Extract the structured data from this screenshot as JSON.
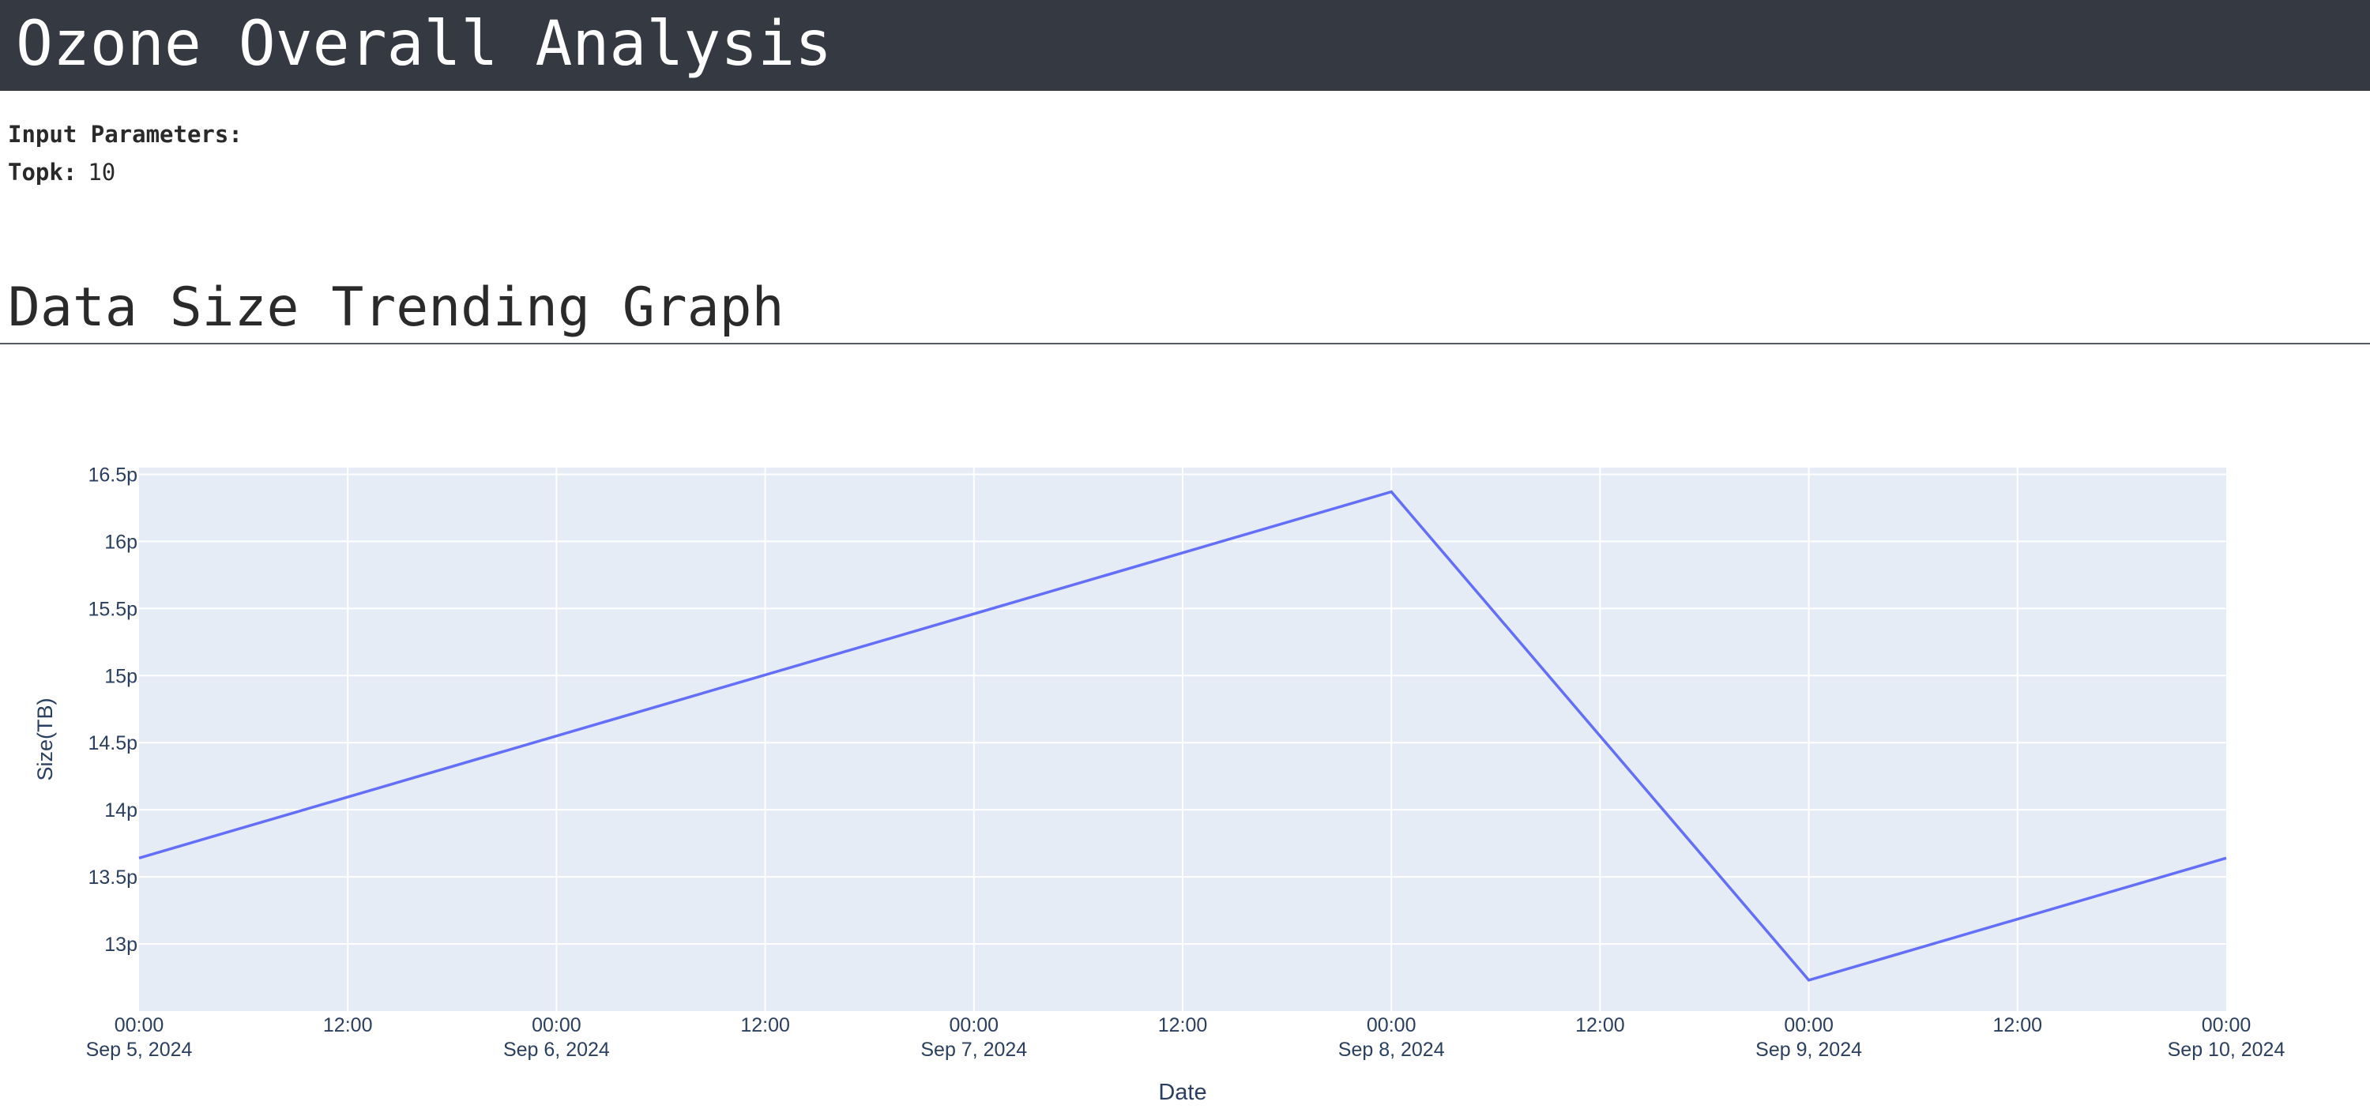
{
  "header": {
    "title": "Ozone Overall Analysis"
  },
  "params": {
    "heading": "Input Parameters:",
    "items": [
      {
        "label": "Topk:",
        "value": "10"
      }
    ]
  },
  "section": {
    "title": "Data Size Trending Graph"
  },
  "colors": {
    "header_bg": "#353a42",
    "plot_bg": "#e5ecf6",
    "line": "#636efa",
    "axis_text": "#2a3f5f"
  },
  "chart_data": {
    "type": "line",
    "xlabel": "Date",
    "ylabel": "Size(TB)",
    "x": [
      "2024-09-05 00:00",
      "2024-09-08 00:00",
      "2024-09-09 00:00",
      "2024-09-10 00:00"
    ],
    "series": [
      {
        "values": [
          1.364e-11,
          1.637e-11,
          1.273e-11,
          1.364e-11
        ]
      }
    ],
    "ylim": [
      1.25e-11,
      1.655e-11
    ],
    "xlim": [
      "2024-09-05 00:00",
      "2024-09-10 00:00"
    ],
    "yticks": [
      {
        "value": 1.3e-11,
        "label": "13p"
      },
      {
        "value": 1.35e-11,
        "label": "13.5p"
      },
      {
        "value": 1.4e-11,
        "label": "14p"
      },
      {
        "value": 1.45e-11,
        "label": "14.5p"
      },
      {
        "value": 1.5e-11,
        "label": "15p"
      },
      {
        "value": 1.55e-11,
        "label": "15.5p"
      },
      {
        "value": 1.6e-11,
        "label": "16p"
      },
      {
        "value": 1.65e-11,
        "label": "16.5p"
      }
    ],
    "xticks": [
      {
        "value": "2024-09-05 00:00",
        "time": "00:00",
        "date": "Sep 5, 2024"
      },
      {
        "value": "2024-09-05 12:00",
        "time": "12:00",
        "date": ""
      },
      {
        "value": "2024-09-06 00:00",
        "time": "00:00",
        "date": "Sep 6, 2024"
      },
      {
        "value": "2024-09-06 12:00",
        "time": "12:00",
        "date": ""
      },
      {
        "value": "2024-09-07 00:00",
        "time": "00:00",
        "date": "Sep 7, 2024"
      },
      {
        "value": "2024-09-07 12:00",
        "time": "12:00",
        "date": ""
      },
      {
        "value": "2024-09-08 00:00",
        "time": "00:00",
        "date": "Sep 8, 2024"
      },
      {
        "value": "2024-09-08 12:00",
        "time": "12:00",
        "date": ""
      },
      {
        "value": "2024-09-09 00:00",
        "time": "00:00",
        "date": "Sep 9, 2024"
      },
      {
        "value": "2024-09-09 12:00",
        "time": "12:00",
        "date": ""
      },
      {
        "value": "2024-09-10 00:00",
        "time": "00:00",
        "date": "Sep 10, 2024"
      }
    ],
    "grid": true,
    "legend": "none"
  }
}
